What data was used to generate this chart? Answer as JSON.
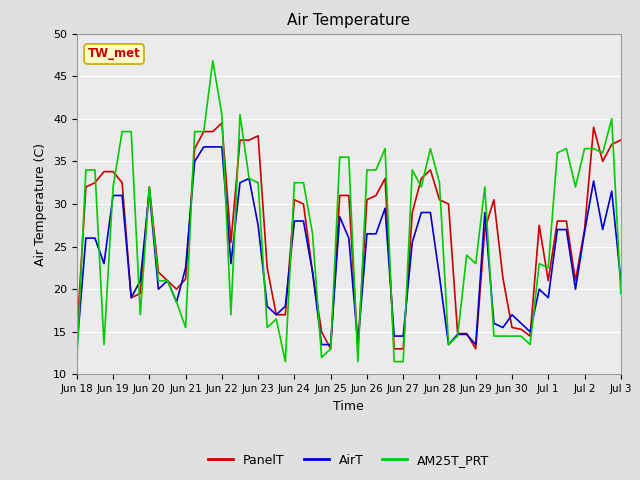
{
  "title": "Air Temperature",
  "xlabel": "Time",
  "ylabel": "Air Temperature (C)",
  "ylim": [
    10,
    50
  ],
  "annotation": "TW_met",
  "fig_bg": "#e0e0e0",
  "plot_bg": "#ebebeb",
  "legend_bg": "#ffffff",
  "legend_entries": [
    "PanelT",
    "AirT",
    "AM25T_PRT"
  ],
  "legend_colors": [
    "#cc0000",
    "#0000cc",
    "#00cc00"
  ],
  "x_tick_labels": [
    "Jun 18",
    "Jun 19",
    "Jun 20",
    "Jun 21",
    "Jun 22",
    "Jun 23",
    "Jun 24",
    "Jun 25",
    "Jun 26",
    "Jun 27",
    "Jun 28",
    "Jun 29",
    "Jun 30",
    "Jul 1",
    "Jul 2",
    "Jul 3"
  ],
  "yticks": [
    10,
    15,
    20,
    25,
    30,
    35,
    40,
    45,
    50
  ],
  "PanelT": [
    14.5,
    32.0,
    32.5,
    33.8,
    33.8,
    32.5,
    19.0,
    19.5,
    32.0,
    22.0,
    21.0,
    20.0,
    21.2,
    36.5,
    38.5,
    38.5,
    39.5,
    25.5,
    37.5,
    37.5,
    38.0,
    22.5,
    17.0,
    17.0,
    30.5,
    30.0,
    22.0,
    15.0,
    13.0,
    31.0,
    31.0,
    13.0,
    30.5,
    31.0,
    33.0,
    13.0,
    13.0,
    29.0,
    33.0,
    34.0,
    30.5,
    30.0,
    14.8,
    14.8,
    13.0,
    27.0,
    30.5,
    21.3,
    15.5,
    15.3,
    14.5,
    27.5,
    21.0,
    28.0,
    28.0,
    21.0,
    27.0,
    39.0,
    35.0,
    37.0,
    37.5
  ],
  "AirT": [
    13.0,
    26.0,
    26.0,
    23.0,
    31.0,
    31.0,
    19.0,
    21.0,
    31.5,
    20.0,
    21.0,
    18.5,
    22.5,
    35.0,
    36.7,
    36.7,
    36.7,
    23.0,
    32.5,
    33.0,
    27.5,
    18.0,
    17.0,
    18.0,
    28.0,
    28.0,
    22.0,
    13.5,
    13.5,
    28.5,
    26.0,
    13.5,
    26.5,
    26.5,
    29.5,
    14.5,
    14.5,
    25.5,
    29.0,
    29.0,
    21.5,
    13.5,
    14.7,
    14.7,
    13.5,
    29.0,
    16.0,
    15.5,
    17.0,
    16.0,
    15.0,
    20.0,
    19.0,
    27.0,
    27.0,
    20.0,
    26.7,
    32.7,
    27.0,
    31.5,
    21.0
  ],
  "AM25T_PRT": [
    11.5,
    34.0,
    34.0,
    13.5,
    32.0,
    38.5,
    38.5,
    17.0,
    32.0,
    21.0,
    21.0,
    18.5,
    15.5,
    38.5,
    38.5,
    46.8,
    40.5,
    17.0,
    40.5,
    33.0,
    32.5,
    15.5,
    16.5,
    11.5,
    32.5,
    32.5,
    26.5,
    12.0,
    13.0,
    35.5,
    35.5,
    11.5,
    34.0,
    34.0,
    36.5,
    11.5,
    11.5,
    34.0,
    32.0,
    36.5,
    32.5,
    13.5,
    14.5,
    24.0,
    23.0,
    32.0,
    14.5,
    14.5,
    14.5,
    14.5,
    13.5,
    23.0,
    22.5,
    36.0,
    36.5,
    32.0,
    36.5,
    36.5,
    36.0,
    40.0,
    19.5
  ]
}
